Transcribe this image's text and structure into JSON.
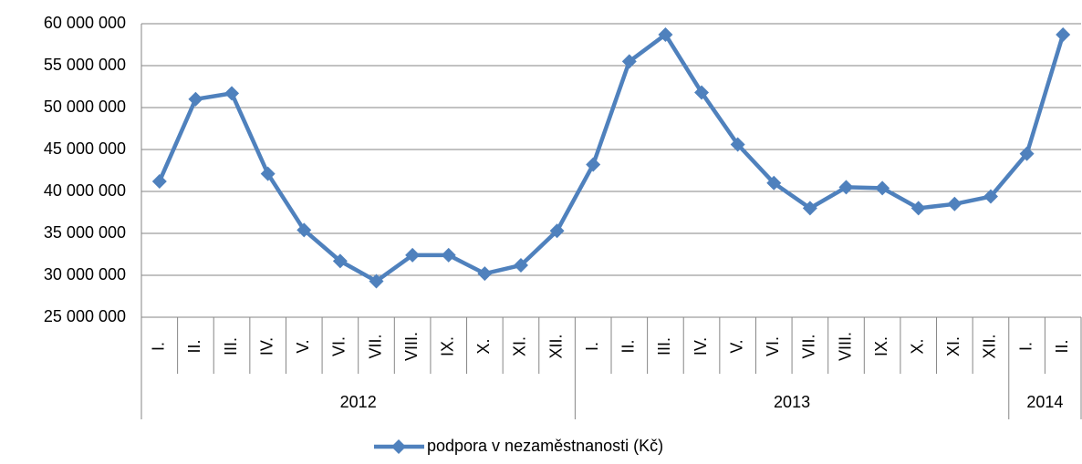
{
  "chart_data": {
    "type": "line",
    "groups": [
      {
        "name": "2012",
        "categories": [
          "I.",
          "II.",
          "III.",
          "IV.",
          "V.",
          "VI.",
          "VII.",
          "VIII.",
          "IX.",
          "X.",
          "XI.",
          "XII."
        ]
      },
      {
        "name": "2013",
        "categories": [
          "I.",
          "II.",
          "III.",
          "IV.",
          "V.",
          "VI.",
          "VII.",
          "VIII.",
          "IX.",
          "X.",
          "XI.",
          "XII."
        ]
      },
      {
        "name": "2014",
        "categories": [
          "I.",
          "II."
        ]
      }
    ],
    "series": [
      {
        "name": "podpora v nezaměstnanosti (Kč)",
        "color": "#4f81bd",
        "values": [
          41200000,
          51000000,
          51700000,
          42100000,
          35400000,
          31700000,
          29300000,
          32400000,
          32400000,
          30200000,
          31200000,
          35300000,
          43200000,
          55500000,
          58700000,
          51800000,
          45600000,
          41000000,
          38000000,
          40500000,
          40400000,
          38000000,
          38500000,
          39400000,
          44500000,
          58700000
        ]
      }
    ],
    "ylim": [
      25000000,
      60000000
    ],
    "yticks": [
      {
        "value": 25000000,
        "label": "25 000 000"
      },
      {
        "value": 30000000,
        "label": "30 000 000"
      },
      {
        "value": 35000000,
        "label": "35 000 000"
      },
      {
        "value": 40000000,
        "label": "40 000 000"
      },
      {
        "value": 45000000,
        "label": "45 000 000"
      },
      {
        "value": 50000000,
        "label": "50 000 000"
      },
      {
        "value": 55000000,
        "label": "55 000 000"
      },
      {
        "value": 60000000,
        "label": "60 000 000"
      }
    ],
    "grid": true,
    "legend": "bottom"
  }
}
